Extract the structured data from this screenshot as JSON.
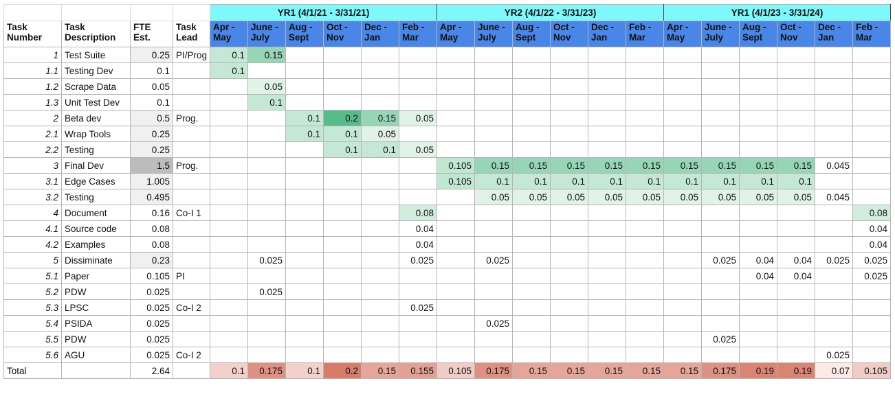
{
  "years": [
    "YR1 (4/1/21 - 3/31/21)",
    "YR2 (4/1/22 - 3/31/23)",
    "YR1 (4/1/23 - 3/31/24)"
  ],
  "headers": {
    "task_number": [
      "Task",
      "Number"
    ],
    "task_description": [
      "Task",
      "Description"
    ],
    "fte": [
      "FTE",
      "Est."
    ],
    "lead": [
      "Task",
      "Lead"
    ]
  },
  "months": [
    [
      "Apr -",
      "May"
    ],
    [
      "June -",
      "July"
    ],
    [
      "Aug -",
      "Sept"
    ],
    [
      "Oct -",
      "Nov"
    ],
    [
      "Dec -",
      "Jan"
    ],
    [
      "Feb -",
      "Mar"
    ],
    [
      "Apr -",
      "May"
    ],
    [
      "June -",
      "July"
    ],
    [
      "Aug -",
      "Sept"
    ],
    [
      "Oct -",
      "Nov"
    ],
    [
      "Dec -",
      "Jan"
    ],
    [
      "Feb -",
      "Mar"
    ],
    [
      "Apr -",
      "May"
    ],
    [
      "June -",
      "July"
    ],
    [
      "Aug -",
      "Sept"
    ],
    [
      "Oct -",
      "Nov"
    ],
    [
      "Dec -",
      "Jan"
    ],
    [
      "Feb -",
      "Mar"
    ]
  ],
  "rows": [
    {
      "num": "1",
      "desc": "Test Suite",
      "fte": "0.25",
      "lead": "PI/Prog",
      "vals": [
        "0.1",
        "0.15",
        "",
        "",
        "",
        "",
        "",
        "",
        "",
        "",
        "",
        "",
        "",
        "",
        "",
        "",
        "",
        ""
      ]
    },
    {
      "num": "1.1",
      "desc": "Testing Dev",
      "fte": "0.1",
      "lead": "",
      "vals": [
        "0.1",
        "",
        "",
        "",
        "",
        "",
        "",
        "",
        "",
        "",
        "",
        "",
        "",
        "",
        "",
        "",
        "",
        ""
      ]
    },
    {
      "num": "1.2",
      "desc": "Scrape Data",
      "fte": "0.05",
      "lead": "",
      "vals": [
        "",
        "0.05",
        "",
        "",
        "",
        "",
        "",
        "",
        "",
        "",
        "",
        "",
        "",
        "",
        "",
        "",
        "",
        ""
      ]
    },
    {
      "num": "1.3",
      "desc": "Unit Test Dev",
      "fte": "0.1",
      "lead": "",
      "vals": [
        "",
        "0.1",
        "",
        "",
        "",
        "",
        "",
        "",
        "",
        "",
        "",
        "",
        "",
        "",
        "",
        "",
        "",
        ""
      ]
    },
    {
      "num": "2",
      "desc": "Beta dev",
      "fte": "0.5",
      "lead": "Prog.",
      "vals": [
        "",
        "",
        "0.1",
        "0.2",
        "0.15",
        "0.05",
        "",
        "",
        "",
        "",
        "",
        "",
        "",
        "",
        "",
        "",
        "",
        ""
      ]
    },
    {
      "num": "2.1",
      "desc": "Wrap Tools",
      "fte": "0.25",
      "lead": "",
      "vals": [
        "",
        "",
        "0.1",
        "0.1",
        "0.05",
        "",
        "",
        "",
        "",
        "",
        "",
        "",
        "",
        "",
        "",
        "",
        "",
        ""
      ]
    },
    {
      "num": "2.2",
      "desc": "Testing",
      "fte": "0.25",
      "lead": "",
      "vals": [
        "",
        "",
        "",
        "0.1",
        "0.1",
        "0.05",
        "",
        "",
        "",
        "",
        "",
        "",
        "",
        "",
        "",
        "",
        "",
        ""
      ]
    },
    {
      "num": "3",
      "desc": "Final Dev",
      "fte": "1.5",
      "lead": "Prog.",
      "vals": [
        "",
        "",
        "",
        "",
        "",
        "",
        "0.105",
        "0.15",
        "0.15",
        "0.15",
        "0.15",
        "0.15",
        "0.15",
        "0.15",
        "0.15",
        "0.15",
        "0.045",
        ""
      ]
    },
    {
      "num": "3.1",
      "desc": "Edge Cases",
      "fte": "1.005",
      "lead": "",
      "vals": [
        "",
        "",
        "",
        "",
        "",
        "",
        "0.105",
        "0.1",
        "0.1",
        "0.1",
        "0.1",
        "0.1",
        "0.1",
        "0.1",
        "0.1",
        "0.1",
        "",
        ""
      ]
    },
    {
      "num": "3.2",
      "desc": "Testing",
      "fte": "0.495",
      "lead": "",
      "vals": [
        "",
        "",
        "",
        "",
        "",
        "",
        "",
        "0.05",
        "0.05",
        "0.05",
        "0.05",
        "0.05",
        "0.05",
        "0.05",
        "0.05",
        "0.05",
        "0.045",
        ""
      ]
    },
    {
      "num": "4",
      "desc": "Document",
      "fte": "0.16",
      "lead": "Co-I 1",
      "vals": [
        "",
        "",
        "",
        "",
        "",
        "0.08",
        "",
        "",
        "",
        "",
        "",
        "",
        "",
        "",
        "",
        "",
        "",
        "0.08"
      ]
    },
    {
      "num": "4.1",
      "desc": "Source code",
      "fte": "0.08",
      "lead": "",
      "vals": [
        "",
        "",
        "",
        "",
        "",
        "0.04",
        "",
        "",
        "",
        "",
        "",
        "",
        "",
        "",
        "",
        "",
        "",
        "0.04"
      ]
    },
    {
      "num": "4.2",
      "desc": "Examples",
      "fte": "0.08",
      "lead": "",
      "vals": [
        "",
        "",
        "",
        "",
        "",
        "0.04",
        "",
        "",
        "",
        "",
        "",
        "",
        "",
        "",
        "",
        "",
        "",
        "0.04"
      ]
    },
    {
      "num": "5",
      "desc": "Dissiminate",
      "fte": "0.23",
      "lead": "",
      "vals": [
        "",
        "0.025",
        "",
        "",
        "",
        "0.025",
        "",
        "0.025",
        "",
        "",
        "",
        "",
        "",
        "0.025",
        "0.04",
        "0.04",
        "0.025",
        "0.025"
      ]
    },
    {
      "num": "5.1",
      "desc": "Paper",
      "fte": "0.105",
      "lead": "PI",
      "vals": [
        "",
        "",
        "",
        "",
        "",
        "",
        "",
        "",
        "",
        "",
        "",
        "",
        "",
        "",
        "0.04",
        "0.04",
        "",
        "0.025"
      ]
    },
    {
      "num": "5.2",
      "desc": "PDW",
      "fte": "0.025",
      "lead": "",
      "vals": [
        "",
        "0.025",
        "",
        "",
        "",
        "",
        "",
        "",
        "",
        "",
        "",
        "",
        "",
        "",
        "",
        "",
        "",
        ""
      ]
    },
    {
      "num": "5.3",
      "desc": "LPSC",
      "fte": "0.025",
      "lead": "Co-I 2",
      "vals": [
        "",
        "",
        "",
        "",
        "",
        "0.025",
        "",
        "",
        "",
        "",
        "",
        "",
        "",
        "",
        "",
        "",
        "",
        ""
      ]
    },
    {
      "num": "5.4",
      "desc": "PSIDA",
      "fte": "0.025",
      "lead": "",
      "vals": [
        "",
        "",
        "",
        "",
        "",
        "",
        "",
        "0.025",
        "",
        "",
        "",
        "",
        "",
        "",
        "",
        "",
        "",
        ""
      ]
    },
    {
      "num": "5.5",
      "desc": "PDW",
      "fte": "0.025",
      "lead": "",
      "vals": [
        "",
        "",
        "",
        "",
        "",
        "",
        "",
        "",
        "",
        "",
        "",
        "",
        "",
        "0.025",
        "",
        "",
        "",
        ""
      ]
    },
    {
      "num": "5.6",
      "desc": "AGU",
      "fte": "0.025",
      "lead": "Co-I 2",
      "vals": [
        "",
        "",
        "",
        "",
        "",
        "",
        "",
        "",
        "",
        "",
        "",
        "",
        "",
        "",
        "",
        "",
        "0.025",
        ""
      ]
    }
  ],
  "total": {
    "label": "Total",
    "fte": "2.64",
    "vals": [
      "0.1",
      "0.175",
      "0.1",
      "0.2",
      "0.15",
      "0.155",
      "0.105",
      "0.175",
      "0.15",
      "0.15",
      "0.15",
      "0.15",
      "0.15",
      "0.175",
      "0.19",
      "0.19",
      "0.07",
      "0.105"
    ]
  },
  "colors": {
    "year_header": "#7ff8fb",
    "month_header": "#4a86e8",
    "green_scale": [
      "#eaf6ee",
      "#57bb8a"
    ],
    "red_scale": [
      "#fbeae8",
      "#d77b6a"
    ]
  }
}
